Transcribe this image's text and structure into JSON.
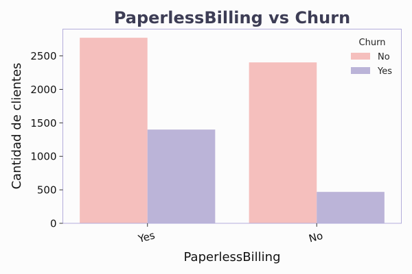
{
  "chart_data": {
    "type": "bar",
    "title": "PaperlessBilling vs Churn",
    "xlabel": "PaperlessBilling",
    "ylabel": "Cantidad de clientes",
    "categories": [
      "Yes",
      "No"
    ],
    "series": [
      {
        "name": "No",
        "values": [
          2771,
          2403
        ],
        "color": "#f5bfbd"
      },
      {
        "name": "Yes",
        "values": [
          1400,
          469
        ],
        "color": "#bbb4d8"
      }
    ],
    "ylim": [
      0,
      2900
    ],
    "yticks": [
      0,
      500,
      1000,
      1500,
      2000,
      2500
    ],
    "legend": {
      "title": "Churn",
      "placement": "top-right"
    },
    "grid": false,
    "colors": {
      "title": "#3d3d55",
      "frame": "#b3addb",
      "background": "#fcfcfc"
    }
  }
}
